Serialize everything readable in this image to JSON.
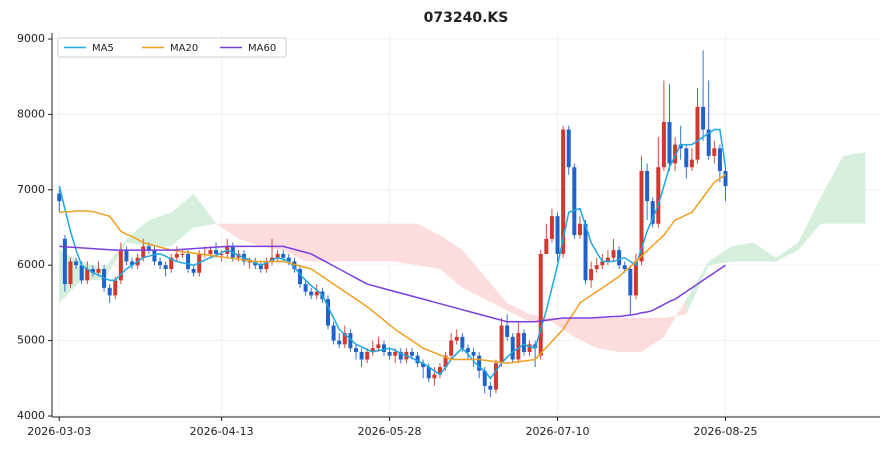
{
  "chart_data": {
    "type": "candlestick",
    "title": "073240.KS",
    "x": [
      0,
      1,
      2,
      3,
      4,
      5,
      6,
      7,
      8,
      9,
      10,
      11,
      12,
      13,
      14,
      15,
      16,
      17,
      18,
      19,
      20,
      21,
      22,
      23,
      24,
      25,
      26,
      27,
      28,
      29,
      30,
      31,
      32,
      33,
      34,
      35,
      36,
      37,
      38,
      39,
      40,
      41,
      42,
      43,
      44,
      45,
      46,
      47,
      48,
      49,
      50,
      51,
      52,
      53,
      54,
      55,
      56,
      57,
      58,
      59,
      60,
      61,
      62,
      63,
      64,
      65,
      66,
      67,
      68,
      69,
      70,
      71,
      72,
      73,
      74,
      75,
      76,
      77,
      78,
      79,
      80,
      81,
      82,
      83,
      84,
      85,
      86,
      87,
      88,
      89,
      90,
      91,
      92,
      93,
      94,
      95,
      96,
      97,
      98,
      99,
      100,
      101,
      102,
      103,
      104,
      105,
      106,
      107,
      108,
      109,
      110,
      111,
      112,
      113,
      114,
      115,
      116,
      117,
      118,
      119
    ],
    "open": [
      6950,
      6350,
      5750,
      6050,
      6000,
      5800,
      5950,
      5900,
      5950,
      5700,
      5600,
      5800,
      6200,
      6050,
      6000,
      6100,
      6250,
      6200,
      6050,
      6000,
      5950,
      6100,
      6150,
      6150,
      5950,
      5900,
      6150,
      6150,
      6200,
      6150,
      6150,
      6250,
      6100,
      6150,
      6050,
      6050,
      6000,
      5950,
      6050,
      6100,
      6150,
      6100,
      6050,
      5950,
      5750,
      5650,
      5600,
      5650,
      5550,
      5200,
      5000,
      4950,
      5100,
      4900,
      4850,
      4750,
      4850,
      4900,
      4950,
      4850,
      4800,
      4850,
      4750,
      4850,
      4800,
      4700,
      4650,
      4500,
      4550,
      4650,
      4800,
      5000,
      5050,
      4900,
      4850,
      4800,
      4600,
      4400,
      4350,
      4700,
      5200,
      5050,
      4750,
      5100,
      4850,
      4950,
      4800,
      6150,
      6350,
      6650,
      6150,
      7800,
      7300,
      6400,
      6550,
      5800,
      5950,
      6000,
      6050,
      6100,
      6200,
      6000,
      5950,
      5600,
      6050,
      7250,
      6850,
      6550,
      7300,
      7900,
      7350,
      7600,
      7550,
      7300,
      7400,
      8100,
      7800,
      7450,
      7550,
      7250
    ],
    "high": [
      7000,
      6400,
      6100,
      6100,
      6050,
      6050,
      6000,
      6050,
      6000,
      5750,
      5850,
      6300,
      6250,
      6100,
      6150,
      6350,
      6300,
      6250,
      6100,
      6050,
      6150,
      6250,
      6200,
      6200,
      6000,
      6200,
      6250,
      6250,
      6300,
      6200,
      6350,
      6300,
      6200,
      6200,
      6100,
      6100,
      6050,
      6100,
      6350,
      6200,
      6200,
      6150,
      6100,
      6000,
      5800,
      5700,
      5750,
      5700,
      5600,
      5250,
      5100,
      5200,
      5150,
      4950,
      4900,
      4900,
      5000,
      5050,
      5000,
      4900,
      4900,
      4900,
      4900,
      4900,
      4850,
      4750,
      4700,
      4650,
      4700,
      4850,
      5100,
      5150,
      5100,
      4950,
      4900,
      4850,
      4650,
      4450,
      4750,
      5300,
      5350,
      5100,
      5250,
      5150,
      5000,
      5000,
      6200,
      6550,
      6750,
      6700,
      7850,
      7850,
      7350,
      6650,
      6600,
      6050,
      6100,
      6150,
      6200,
      6350,
      6250,
      6050,
      6000,
      6150,
      7450,
      7350,
      6900,
      7700,
      8450,
      8400,
      7700,
      7850,
      7600,
      7550,
      8350,
      8850,
      8450,
      7650,
      7600,
      7300
    ],
    "low": [
      6700,
      5650,
      5700,
      5950,
      5750,
      5750,
      5850,
      5850,
      5650,
      5500,
      5550,
      5750,
      6000,
      5950,
      5950,
      6050,
      6150,
      6000,
      5950,
      5850,
      5900,
      6050,
      6100,
      5900,
      5850,
      5850,
      6100,
      6100,
      6100,
      6050,
      6100,
      6050,
      6050,
      6000,
      5950,
      5950,
      5900,
      5900,
      6000,
      6050,
      6050,
      6000,
      5900,
      5700,
      5600,
      5550,
      5550,
      5500,
      5150,
      4950,
      4900,
      4900,
      4850,
      4750,
      4650,
      4700,
      4800,
      4850,
      4800,
      4750,
      4700,
      4700,
      4700,
      4750,
      4650,
      4500,
      4450,
      4400,
      4500,
      4600,
      4750,
      4950,
      4850,
      4750,
      4650,
      4500,
      4300,
      4250,
      4300,
      4650,
      5000,
      4700,
      4700,
      4800,
      4800,
      4650,
      4750,
      6150,
      6300,
      6050,
      6100,
      7200,
      6350,
      6350,
      5750,
      5700,
      5900,
      5950,
      6000,
      6050,
      5950,
      5900,
      5350,
      5550,
      6000,
      6600,
      6500,
      6500,
      7250,
      7250,
      7250,
      7400,
      7150,
      7250,
      7350,
      7650,
      7400,
      7350,
      7100,
      6850
    ],
    "close": [
      6850,
      5750,
      6050,
      6000,
      5800,
      5950,
      5900,
      5950,
      5700,
      5600,
      5800,
      6200,
      6050,
      6000,
      6100,
      6250,
      6200,
      6050,
      6000,
      5950,
      6100,
      6150,
      6150,
      5950,
      5900,
      6150,
      6150,
      6200,
      6150,
      6150,
      6250,
      6100,
      6150,
      6050,
      6050,
      6000,
      5950,
      6050,
      6100,
      6150,
      6100,
      6050,
      5950,
      5750,
      5650,
      5600,
      5650,
      5550,
      5200,
      5000,
      4950,
      5100,
      4900,
      4850,
      4750,
      4850,
      4900,
      4950,
      4850,
      4800,
      4850,
      4750,
      4850,
      4800,
      4700,
      4650,
      4500,
      4550,
      4650,
      4800,
      5000,
      5050,
      4900,
      4850,
      4800,
      4600,
      4400,
      4350,
      4700,
      5200,
      5050,
      4750,
      5100,
      4850,
      4950,
      4900,
      6150,
      6350,
      6650,
      6150,
      7800,
      7300,
      6400,
      6550,
      5800,
      5950,
      6000,
      6050,
      6100,
      6200,
      6000,
      5950,
      5600,
      6050,
      7250,
      6850,
      6550,
      7300,
      7900,
      7350,
      7600,
      7550,
      7300,
      7400,
      8100,
      7800,
      7450,
      7550,
      7250,
      7050
    ],
    "up_color": "#d0392f",
    "down_color": "#1f62c9",
    "series": [
      {
        "name": "MA5",
        "color": "#1ea7e0",
        "values": [
          7050,
          6750,
          6450,
          6200,
          6000,
          5950,
          5900,
          5870,
          5830,
          5800,
          5800,
          5880,
          5950,
          6000,
          6050,
          6100,
          6120,
          6140,
          6150,
          6120,
          6080,
          6050,
          6030,
          6020,
          6000,
          6030,
          6070,
          6100,
          6130,
          6170,
          6200,
          6170,
          6130,
          6100,
          6070,
          6030,
          6000,
          6030,
          6070,
          6100,
          6080,
          6050,
          5970,
          5880,
          5800,
          5730,
          5670,
          5600,
          5450,
          5300,
          5150,
          5080,
          5020,
          4950,
          4920,
          4880,
          4850,
          4870,
          4880,
          4900,
          4870,
          4830,
          4800,
          4770,
          4730,
          4700,
          4650,
          4600,
          4550,
          4650,
          4750,
          4830,
          4900,
          4820,
          4730,
          4650,
          4600,
          4500,
          4600,
          4700,
          4780,
          4850,
          4900,
          4950,
          4920,
          4900,
          5150,
          5400,
          5700,
          6000,
          6350,
          6700,
          6730,
          6750,
          6530,
          6300,
          6170,
          6050,
          6050,
          6050,
          6080,
          6100,
          6050,
          6000,
          6220,
          6450,
          6620,
          6800,
          7050,
          7300,
          7450,
          7600,
          7600,
          7600,
          7650,
          7700,
          7750,
          7800,
          7800,
          7300
        ]
      },
      {
        "name": "MA20",
        "color": "#f0a020",
        "values": [
          6700,
          6710,
          6710,
          6720,
          6720,
          6720,
          6710,
          6690,
          6670,
          6650,
          6550,
          6450,
          6410,
          6380,
          6340,
          6300,
          6280,
          6260,
          6240,
          6220,
          6200,
          6190,
          6180,
          6170,
          6160,
          6150,
          6140,
          6130,
          6120,
          6110,
          6100,
          6090,
          6080,
          6070,
          6060,
          6050,
          6050,
          6050,
          6050,
          6050,
          6050,
          6030,
          6010,
          5990,
          5970,
          5950,
          5900,
          5850,
          5800,
          5750,
          5700,
          5650,
          5600,
          5550,
          5500,
          5450,
          5390,
          5330,
          5270,
          5210,
          5150,
          5100,
          5050,
          5000,
          4950,
          4900,
          4870,
          4840,
          4810,
          4780,
          4750,
          4750,
          4750,
          4750,
          4750,
          4750,
          4740,
          4730,
          4720,
          4710,
          4700,
          4710,
          4720,
          4730,
          4740,
          4750,
          4830,
          4910,
          4990,
          5070,
          5150,
          5270,
          5380,
          5500,
          5550,
          5600,
          5650,
          5700,
          5750,
          5800,
          5850,
          5920,
          5980,
          6050,
          6120,
          6190,
          6260,
          6330,
          6400,
          6500,
          6600,
          6630,
          6670,
          6700,
          6800,
          6900,
          7000,
          7100,
          7150,
          7200
        ]
      },
      {
        "name": "MA60",
        "color": "#7b3fe0",
        "values": [
          6250,
          6245,
          6240,
          6235,
          6230,
          6225,
          6220,
          6215,
          6210,
          6205,
          6200,
          6200,
          6200,
          6200,
          6200,
          6200,
          6200,
          6200,
          6200,
          6200,
          6200,
          6205,
          6210,
          6215,
          6220,
          6225,
          6230,
          6235,
          6240,
          6245,
          6250,
          6250,
          6250,
          6250,
          6250,
          6250,
          6250,
          6250,
          6250,
          6250,
          6250,
          6230,
          6210,
          6190,
          6170,
          6150,
          6110,
          6070,
          6030,
          5990,
          5950,
          5910,
          5870,
          5830,
          5790,
          5750,
          5730,
          5710,
          5690,
          5670,
          5650,
          5630,
          5610,
          5590,
          5570,
          5550,
          5530,
          5510,
          5490,
          5470,
          5450,
          5430,
          5410,
          5390,
          5370,
          5350,
          5330,
          5310,
          5290,
          5270,
          5250,
          5250,
          5250,
          5250,
          5250,
          5250,
          5260,
          5270,
          5280,
          5290,
          5300,
          5300,
          5300,
          5300,
          5300,
          5300,
          5305,
          5310,
          5315,
          5320,
          5320,
          5330,
          5340,
          5350,
          5370,
          5380,
          5400,
          5440,
          5480,
          5520,
          5550,
          5600,
          5650,
          5700,
          5750,
          5800,
          5850,
          5900,
          5950,
          6000
        ]
      }
    ],
    "cloud": {
      "x": [
        0,
        4,
        8,
        12,
        16,
        20,
        24,
        28,
        32,
        36,
        40,
        44,
        48,
        52,
        56,
        60,
        64,
        68,
        72,
        76,
        80,
        84,
        88,
        92,
        96,
        100,
        104,
        108,
        112,
        116,
        120,
        124,
        128,
        132,
        136,
        140,
        144
      ],
      "span_a": [
        6200,
        6050,
        5950,
        6350,
        6600,
        6700,
        6950,
        6550,
        6350,
        6250,
        6200,
        6050,
        6050,
        6050,
        6050,
        6050,
        6000,
        5950,
        5700,
        5550,
        5400,
        5250,
        5250,
        5050,
        4900,
        4850,
        4850,
        5050,
        5550,
        6050,
        6250,
        6300,
        6100,
        6300,
        6900,
        7450,
        7500
      ],
      "span_b": [
        5500,
        5800,
        5800,
        6300,
        6250,
        6250,
        6500,
        6550,
        6550,
        6550,
        6550,
        6550,
        6550,
        6550,
        6550,
        6550,
        6550,
        6400,
        6200,
        5850,
        5500,
        5350,
        5300,
        5300,
        5300,
        5300,
        5300,
        5300,
        5350,
        6000,
        6050,
        6050,
        6050,
        6200,
        6550,
        6550,
        6550
      ],
      "up_color": "#d5efdc",
      "down_color": "#fcdcdc"
    },
    "xlim": [
      -1.3,
      146.6
    ],
    "ylim": [
      3987,
      9080
    ],
    "xticks": [
      {
        "value": 0,
        "label": "2026-03-03"
      },
      {
        "value": 29,
        "label": "2026-04-13"
      },
      {
        "value": 59,
        "label": "2026-05-28"
      },
      {
        "value": 89,
        "label": "2026-07-10"
      },
      {
        "value": 119,
        "label": "2026-08-25"
      }
    ],
    "yticks": [
      4000,
      5000,
      6000,
      7000,
      8000,
      9000
    ],
    "grid": true,
    "legend": "upper left"
  }
}
